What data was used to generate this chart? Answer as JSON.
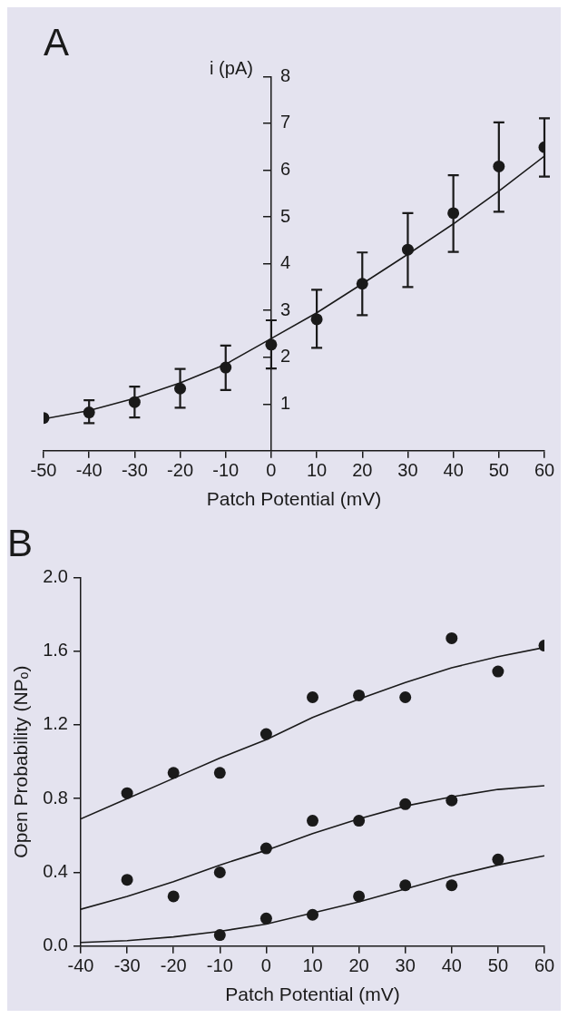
{
  "chart_data": [
    {
      "type": "scatter",
      "title": "A",
      "xlabel": "Patch Potential (mV)",
      "ylabel": "i (pA)",
      "xlim": [
        -50,
        60
      ],
      "xticks": [
        -50,
        -40,
        -30,
        -20,
        -10,
        0,
        10,
        20,
        30,
        40,
        50,
        60
      ],
      "ylim": [
        0,
        8
      ],
      "yticks": [
        1,
        2,
        3,
        4,
        5,
        6,
        7,
        8
      ],
      "legend": false,
      "marker": "circle",
      "series": [
        {
          "type": "scatter",
          "color": "#1a1a1a",
          "x": [
            -50,
            -40,
            -30,
            -20,
            -10,
            0,
            10,
            20,
            30,
            40,
            50,
            60
          ],
          "values": [
            0.7,
            0.82,
            1.04,
            1.33,
            1.78,
            2.27,
            2.81,
            3.57,
            4.3,
            5.08,
            6.08,
            6.49
          ],
          "errors": [
            null,
            [
              0.59,
              1.08
            ],
            [
              0.71,
              1.37
            ],
            [
              0.92,
              1.75
            ],
            [
              1.3,
              2.25
            ],
            [
              1.76,
              2.79
            ],
            [
              2.2,
              3.44
            ],
            [
              2.9,
              4.24
            ],
            [
              3.5,
              5.08
            ],
            [
              4.25,
              5.89
            ],
            [
              5.11,
              7.02
            ],
            [
              5.86,
              7.11
            ]
          ]
        },
        {
          "type": "line",
          "marker": "none",
          "color": "#1a1a1a",
          "x": [
            -50,
            -40,
            -30,
            -20,
            -10,
            0,
            10,
            20,
            30,
            40,
            50,
            60
          ],
          "values": [
            0.68,
            0.86,
            1.12,
            1.45,
            1.85,
            2.4,
            2.95,
            3.57,
            4.2,
            4.85,
            5.55,
            6.3
          ]
        }
      ]
    },
    {
      "type": "scatter",
      "title": "B",
      "xlabel": "Patch Potential (mV)",
      "ylabel": "Open Probability (NPₒ)",
      "xlim": [
        -40,
        60
      ],
      "xticks": [
        -40,
        -30,
        -20,
        -10,
        0,
        10,
        20,
        30,
        40,
        50,
        60
      ],
      "ylim": [
        0,
        2
      ],
      "yticks": [
        {
          "value": 0,
          "label": "0.0"
        },
        {
          "value": 0.4,
          "label": "0.4"
        },
        {
          "value": 0.8,
          "label": "0.8"
        },
        {
          "value": 1.2,
          "label": "1.2"
        },
        {
          "value": 1.6,
          "label": "1.6"
        },
        {
          "value": 2,
          "label": "2.0"
        }
      ],
      "legend": false,
      "marker": "circle",
      "series": [
        {
          "type": "scatter",
          "color": "#1a1a1a",
          "x": [
            -30,
            -20,
            -10,
            0,
            10,
            20,
            30,
            40,
            50,
            60
          ],
          "values": [
            0.83,
            0.94,
            0.94,
            1.15,
            1.35,
            1.36,
            1.35,
            1.67,
            1.49,
            1.63
          ]
        },
        {
          "type": "scatter",
          "color": "#1a1a1a",
          "x": [
            -30,
            -20,
            -10,
            0,
            10,
            20,
            30,
            40
          ],
          "values": [
            0.36,
            0.27,
            0.4,
            0.53,
            0.68,
            0.68,
            0.77,
            0.79
          ]
        },
        {
          "type": "scatter",
          "color": "#1a1a1a",
          "x": [
            -10,
            0,
            10,
            20,
            30,
            40,
            50
          ],
          "values": [
            0.06,
            0.15,
            0.17,
            0.27,
            0.33,
            0.33,
            0.47
          ]
        },
        {
          "type": "line",
          "marker": "none",
          "color": "#1a1a1a",
          "x": [
            -40,
            -30,
            -20,
            -10,
            0,
            10,
            20,
            30,
            40,
            50,
            60
          ],
          "values": [
            0.69,
            0.8,
            0.91,
            1.02,
            1.12,
            1.24,
            1.34,
            1.43,
            1.51,
            1.57,
            1.62
          ]
        },
        {
          "type": "line",
          "marker": "none",
          "color": "#1a1a1a",
          "x": [
            -40,
            -30,
            -20,
            -10,
            0,
            10,
            20,
            30,
            40,
            50,
            60
          ],
          "values": [
            0.2,
            0.27,
            0.35,
            0.44,
            0.52,
            0.61,
            0.69,
            0.76,
            0.81,
            0.85,
            0.87
          ]
        },
        {
          "type": "line",
          "marker": "none",
          "color": "#1a1a1a",
          "x": [
            -40,
            -30,
            -20,
            -10,
            0,
            10,
            20,
            30,
            40,
            50,
            60
          ],
          "values": [
            0.02,
            0.03,
            0.05,
            0.08,
            0.12,
            0.18,
            0.24,
            0.31,
            0.38,
            0.44,
            0.49
          ]
        }
      ]
    }
  ]
}
